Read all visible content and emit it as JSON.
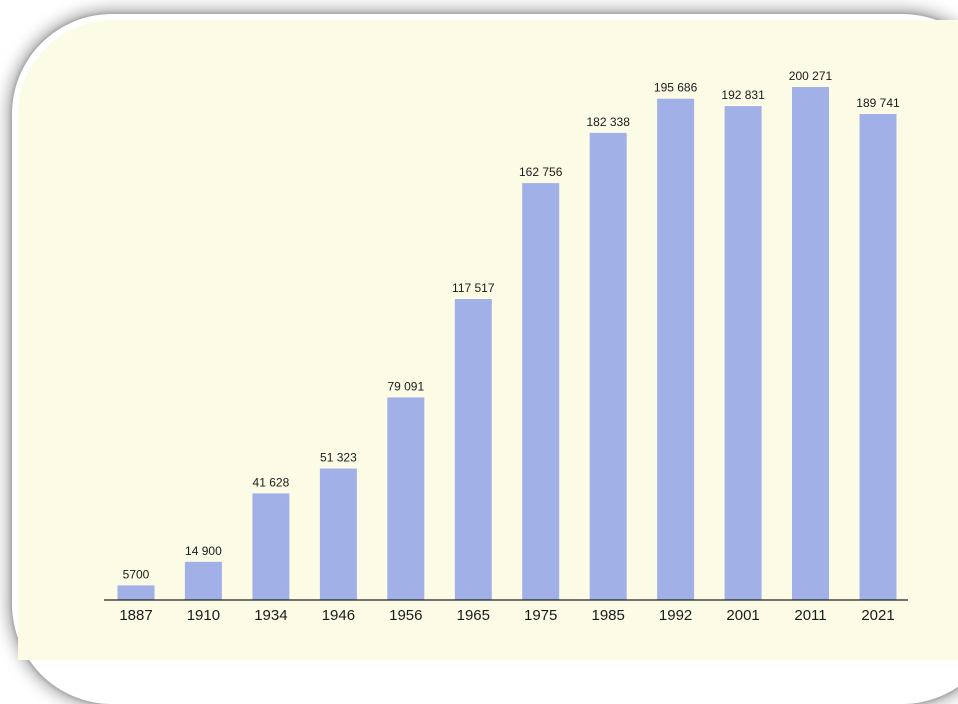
{
  "chart_data": {
    "type": "bar",
    "categories": [
      "1887",
      "1910",
      "1934",
      "1946",
      "1956",
      "1965",
      "1975",
      "1985",
      "1992",
      "2001",
      "2011",
      "2021"
    ],
    "values": [
      5700,
      14900,
      41628,
      51323,
      79091,
      117517,
      162756,
      182338,
      195686,
      192831,
      200271,
      189741
    ],
    "value_labels": [
      "5700",
      "14 900",
      "41 628",
      "51 323",
      "79 091",
      "117 517",
      "162 756",
      "182 338",
      "195 686",
      "192 831",
      "200 271",
      "189 741"
    ],
    "title": "",
    "xlabel": "",
    "ylabel": "",
    "ylim": [
      0,
      200271
    ],
    "grid": false,
    "colors": {
      "bar": "#a2b0e8",
      "background": "#fcfbe6",
      "axis": "#222222"
    }
  }
}
